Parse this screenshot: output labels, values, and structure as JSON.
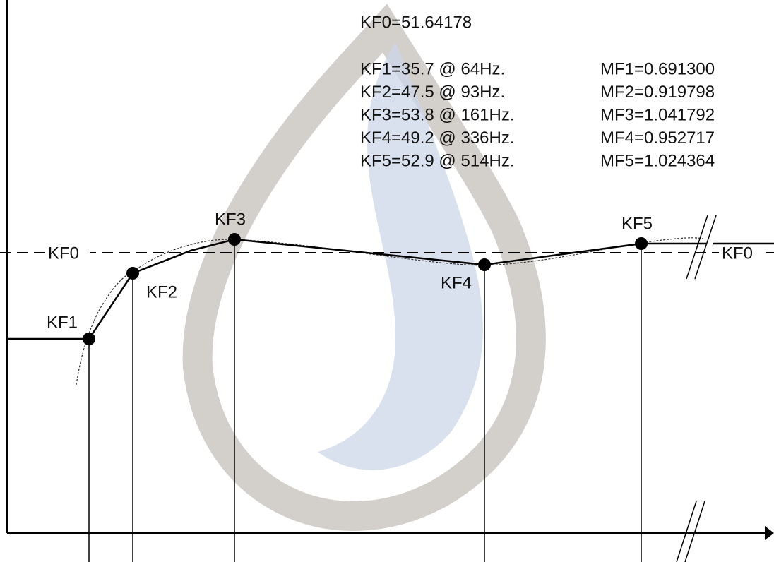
{
  "header": "KF0=51.64178",
  "kf_lines": [
    "KF1=35.7 @ 64Hz.",
    "KF2=47.5 @ 93Hz.",
    "KF3=53.8 @ 161Hz.",
    "KF4=49.2 @ 336Hz.",
    "KF5=52.9 @ 514Hz."
  ],
  "mf_lines": [
    "MF1=0.691300",
    "MF2=0.919798",
    "MF3=1.041792",
    "MF4=0.952717",
    "MF5=1.024364"
  ],
  "point_labels": [
    "KF1",
    "KF2",
    "KF3",
    "KF4",
    "KF5"
  ],
  "baseline_labels": [
    "KF0",
    "KF0"
  ]
}
